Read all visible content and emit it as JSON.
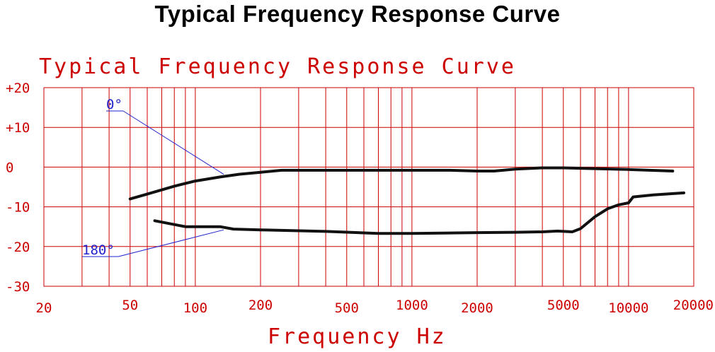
{
  "page_title": "Typical Frequency Response Curve",
  "chart_data": {
    "type": "line",
    "title": "Typical Frequency Response Curve",
    "xlabel": "Frequency Hz",
    "ylabel": "",
    "x_scale": "log",
    "xlim": [
      20,
      20000
    ],
    "ylim": [
      -30,
      20
    ],
    "grid": true,
    "x_tick_labels": [
      "20",
      "50",
      "100",
      "200",
      "500",
      "1000",
      "2000",
      "5000",
      "10000",
      "20000"
    ],
    "y_tick_labels": [
      "+20",
      "+10",
      "0",
      "-10",
      "-20",
      "-30"
    ],
    "series": [
      {
        "name": "0°",
        "points": [
          [
            50,
            -8
          ],
          [
            60,
            -6.8
          ],
          [
            80,
            -4.8
          ],
          [
            100,
            -3.5
          ],
          [
            130,
            -2.5
          ],
          [
            160,
            -1.8
          ],
          [
            200,
            -1.3
          ],
          [
            250,
            -0.8
          ],
          [
            500,
            -0.8
          ],
          [
            1000,
            -0.8
          ],
          [
            1500,
            -0.8
          ],
          [
            2000,
            -1.0
          ],
          [
            2400,
            -1.0
          ],
          [
            3000,
            -0.5
          ],
          [
            4000,
            -0.2
          ],
          [
            5000,
            -0.2
          ],
          [
            7000,
            -0.4
          ],
          [
            10000,
            -0.6
          ],
          [
            16000,
            -1.0
          ]
        ]
      },
      {
        "name": "180°",
        "points": [
          [
            65,
            -13.5
          ],
          [
            90,
            -15.0
          ],
          [
            130,
            -15.0
          ],
          [
            150,
            -15.6
          ],
          [
            200,
            -15.8
          ],
          [
            400,
            -16.2
          ],
          [
            700,
            -16.7
          ],
          [
            1000,
            -16.7
          ],
          [
            2000,
            -16.5
          ],
          [
            3000,
            -16.4
          ],
          [
            4000,
            -16.3
          ],
          [
            4700,
            -16.1
          ],
          [
            5500,
            -16.3
          ],
          [
            6000,
            -15.5
          ],
          [
            7000,
            -12.5
          ],
          [
            8000,
            -10.5
          ],
          [
            9000,
            -9.5
          ],
          [
            10000,
            -9.0
          ],
          [
            10500,
            -7.5
          ],
          [
            13000,
            -7.0
          ],
          [
            18000,
            -6.5
          ]
        ]
      }
    ],
    "annotations": [
      {
        "text": "0°",
        "points_to": [
          170,
          -1.8
        ]
      },
      {
        "text": "180°",
        "points_to": [
          170,
          -15.8
        ]
      }
    ]
  },
  "colors": {
    "grid": "#cc0000",
    "curve": "#111111",
    "annotation": "#2222cc"
  }
}
